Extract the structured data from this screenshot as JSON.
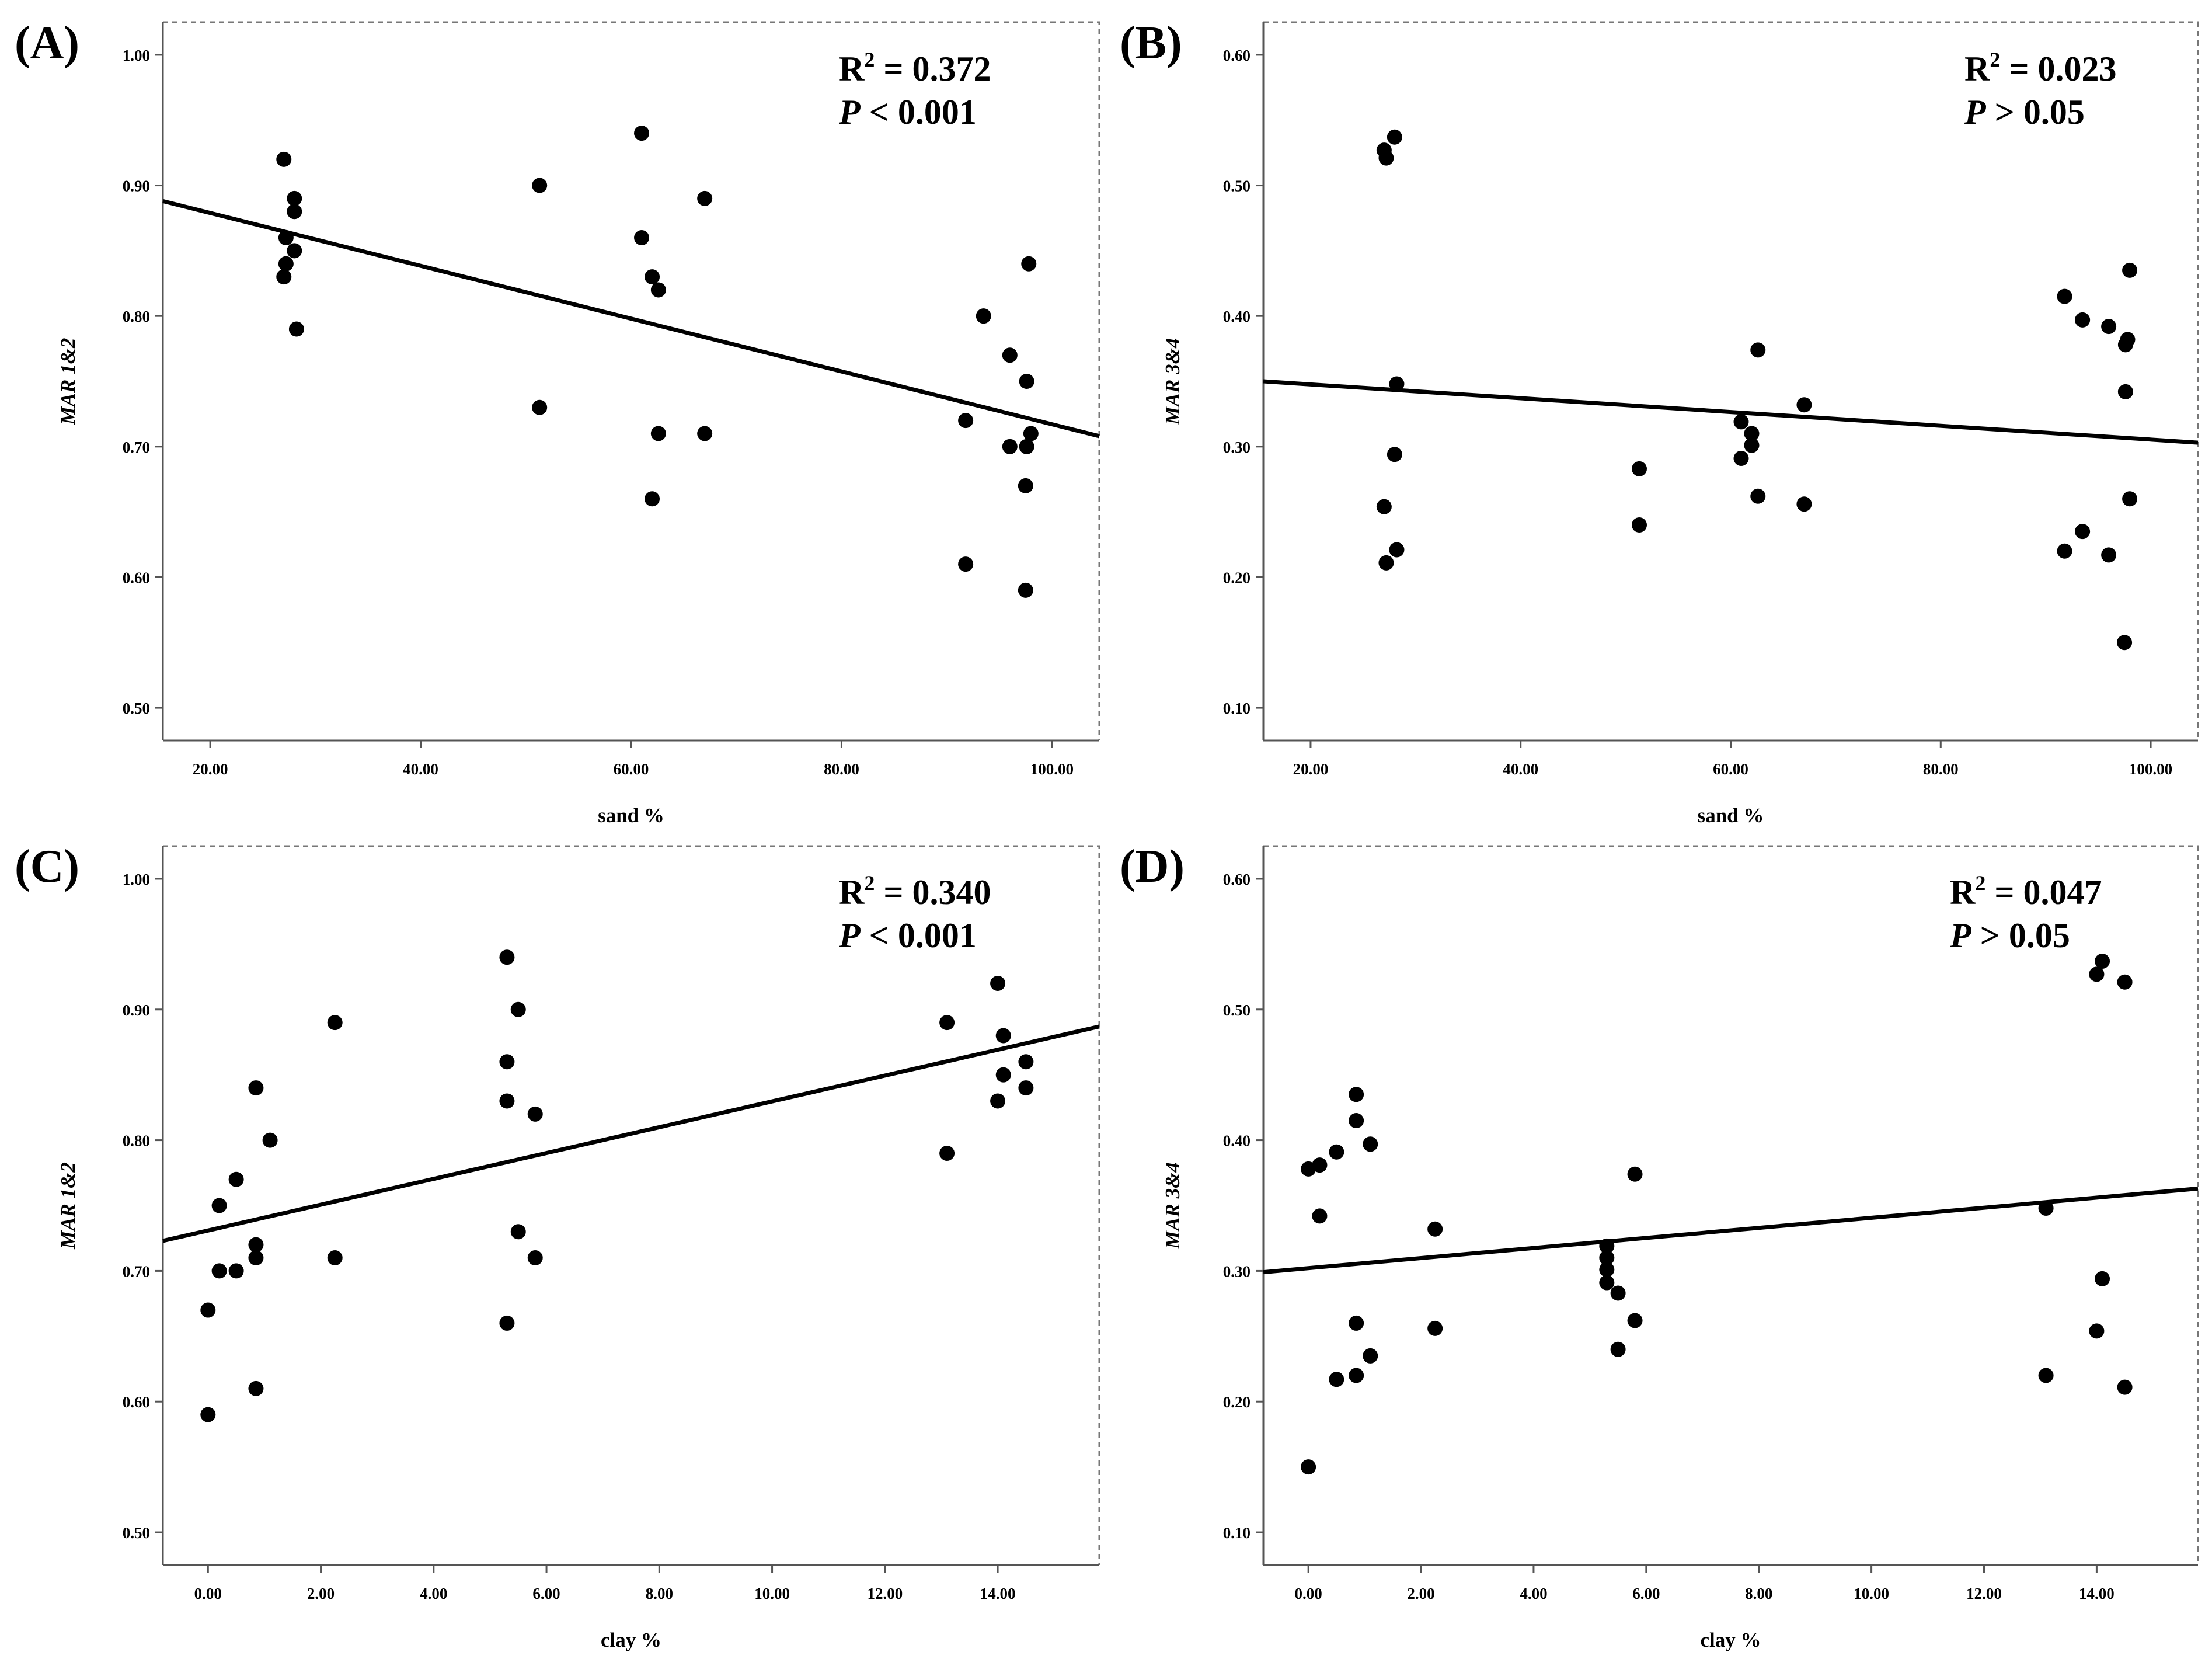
{
  "chart_data": [
    {
      "type": "scatter",
      "panel_label": "(A)",
      "xlabel": "sand %",
      "ylabel": "MAR 1&2",
      "xlim": [
        15.5,
        104.5
      ],
      "ylim": [
        0.475,
        1.025
      ],
      "xticks": [
        20,
        40,
        60,
        80,
        100
      ],
      "yticks": [
        0.5,
        0.6,
        0.7,
        0.8,
        0.9,
        1.0
      ],
      "xtick_labels": [
        "20.00",
        "40.00",
        "60.00",
        "80.00",
        "100.00"
      ],
      "ytick_labels": [
        "0.50",
        "0.60",
        "0.70",
        "0.80",
        "0.90",
        "1.00"
      ],
      "annotation": {
        "r2_text": "R",
        "r2_sup": "2",
        "r2_value": " = 0.372",
        "p_text": "P",
        "p_value": " < 0.001"
      },
      "fit_line": {
        "x": [
          15.5,
          104.5
        ],
        "y": [
          0.888,
          0.708
        ]
      },
      "points": [
        {
          "x": 27.0,
          "y": 0.92
        },
        {
          "x": 28.0,
          "y": 0.89
        },
        {
          "x": 28.0,
          "y": 0.88
        },
        {
          "x": 27.2,
          "y": 0.86
        },
        {
          "x": 28.0,
          "y": 0.85
        },
        {
          "x": 27.2,
          "y": 0.84
        },
        {
          "x": 27.0,
          "y": 0.83
        },
        {
          "x": 28.2,
          "y": 0.79
        },
        {
          "x": 51.3,
          "y": 0.9
        },
        {
          "x": 51.3,
          "y": 0.73
        },
        {
          "x": 61.0,
          "y": 0.94
        },
        {
          "x": 61.0,
          "y": 0.86
        },
        {
          "x": 62.0,
          "y": 0.83
        },
        {
          "x": 62.6,
          "y": 0.82
        },
        {
          "x": 62.6,
          "y": 0.71
        },
        {
          "x": 62.0,
          "y": 0.66
        },
        {
          "x": 67.0,
          "y": 0.89
        },
        {
          "x": 67.0,
          "y": 0.71
        },
        {
          "x": 93.5,
          "y": 0.8
        },
        {
          "x": 91.8,
          "y": 0.72
        },
        {
          "x": 91.8,
          "y": 0.61
        },
        {
          "x": 96.0,
          "y": 0.77
        },
        {
          "x": 96.0,
          "y": 0.7
        },
        {
          "x": 97.8,
          "y": 0.84
        },
        {
          "x": 97.6,
          "y": 0.75
        },
        {
          "x": 98.0,
          "y": 0.71
        },
        {
          "x": 97.6,
          "y": 0.7
        },
        {
          "x": 97.5,
          "y": 0.67
        },
        {
          "x": 97.5,
          "y": 0.59
        }
      ]
    },
    {
      "type": "scatter",
      "panel_label": "(B)",
      "xlabel": "sand %",
      "ylabel": "MAR 3&4",
      "xlim": [
        15.5,
        104.5
      ],
      "ylim": [
        0.075,
        0.625
      ],
      "xticks": [
        20,
        40,
        60,
        80,
        100
      ],
      "yticks": [
        0.1,
        0.2,
        0.3,
        0.4,
        0.5,
        0.6
      ],
      "xtick_labels": [
        "20.00",
        "40.00",
        "60.00",
        "80.00",
        "100.00"
      ],
      "ytick_labels": [
        "0.10",
        "0.20",
        "0.30",
        "0.40",
        "0.50",
        "0.60"
      ],
      "annotation": {
        "r2_text": "R",
        "r2_sup": "2",
        "r2_value": " = 0.023",
        "p_text": "P",
        "p_value": "  > 0.05"
      },
      "fit_line": {
        "x": [
          15.5,
          104.5
        ],
        "y": [
          0.35,
          0.303
        ]
      },
      "points": [
        {
          "x": 27.0,
          "y": 0.527
        },
        {
          "x": 27.2,
          "y": 0.521
        },
        {
          "x": 28.0,
          "y": 0.537
        },
        {
          "x": 28.2,
          "y": 0.348
        },
        {
          "x": 28.0,
          "y": 0.294
        },
        {
          "x": 27.0,
          "y": 0.254
        },
        {
          "x": 28.2,
          "y": 0.221
        },
        {
          "x": 27.2,
          "y": 0.211
        },
        {
          "x": 51.3,
          "y": 0.283
        },
        {
          "x": 51.3,
          "y": 0.24
        },
        {
          "x": 62.6,
          "y": 0.374
        },
        {
          "x": 67.0,
          "y": 0.332
        },
        {
          "x": 61.0,
          "y": 0.319
        },
        {
          "x": 62.0,
          "y": 0.31
        },
        {
          "x": 62.0,
          "y": 0.301
        },
        {
          "x": 61.0,
          "y": 0.291
        },
        {
          "x": 62.6,
          "y": 0.262
        },
        {
          "x": 67.0,
          "y": 0.256
        },
        {
          "x": 91.8,
          "y": 0.415
        },
        {
          "x": 93.5,
          "y": 0.397
        },
        {
          "x": 96.0,
          "y": 0.392
        },
        {
          "x": 98.0,
          "y": 0.435
        },
        {
          "x": 97.8,
          "y": 0.382
        },
        {
          "x": 97.6,
          "y": 0.378
        },
        {
          "x": 97.6,
          "y": 0.342
        },
        {
          "x": 98.0,
          "y": 0.26
        },
        {
          "x": 93.5,
          "y": 0.235
        },
        {
          "x": 91.8,
          "y": 0.22
        },
        {
          "x": 96.0,
          "y": 0.217
        },
        {
          "x": 97.5,
          "y": 0.15
        }
      ]
    },
    {
      "type": "scatter",
      "panel_label": "(C)",
      "xlabel": "clay %",
      "ylabel": "MAR 1&2",
      "xlim": [
        -0.8,
        15.8
      ],
      "ylim": [
        0.475,
        1.025
      ],
      "xticks": [
        0,
        2,
        4,
        6,
        8,
        10,
        12,
        14
      ],
      "yticks": [
        0.5,
        0.6,
        0.7,
        0.8,
        0.9,
        1.0
      ],
      "xtick_labels": [
        "0.00",
        "2.00",
        "4.00",
        "6.00",
        "8.00",
        "10.00",
        "12.00",
        "14.00"
      ],
      "ytick_labels": [
        "0.50",
        "0.60",
        "0.70",
        "0.80",
        "0.90",
        "1.00"
      ],
      "annotation": {
        "r2_text": "R",
        "r2_sup": "2",
        "r2_value": " = 0.340",
        "p_text": "P",
        "p_value": " < 0.001"
      },
      "fit_line": {
        "x": [
          -0.8,
          15.8
        ],
        "y": [
          0.723,
          0.887
        ]
      },
      "points": [
        {
          "x": 0.0,
          "y": 0.67
        },
        {
          "x": 0.0,
          "y": 0.59
        },
        {
          "x": 0.2,
          "y": 0.75
        },
        {
          "x": 0.2,
          "y": 0.7
        },
        {
          "x": 0.5,
          "y": 0.77
        },
        {
          "x": 0.5,
          "y": 0.7
        },
        {
          "x": 0.85,
          "y": 0.84
        },
        {
          "x": 0.85,
          "y": 0.72
        },
        {
          "x": 0.85,
          "y": 0.71
        },
        {
          "x": 0.85,
          "y": 0.61
        },
        {
          "x": 1.1,
          "y": 0.8
        },
        {
          "x": 2.25,
          "y": 0.89
        },
        {
          "x": 2.25,
          "y": 0.71
        },
        {
          "x": 5.3,
          "y": 0.94
        },
        {
          "x": 5.3,
          "y": 0.86
        },
        {
          "x": 5.3,
          "y": 0.83
        },
        {
          "x": 5.3,
          "y": 0.66
        },
        {
          "x": 5.5,
          "y": 0.9
        },
        {
          "x": 5.5,
          "y": 0.73
        },
        {
          "x": 5.8,
          "y": 0.82
        },
        {
          "x": 5.8,
          "y": 0.71
        },
        {
          "x": 13.1,
          "y": 0.89
        },
        {
          "x": 13.1,
          "y": 0.79
        },
        {
          "x": 14.0,
          "y": 0.92
        },
        {
          "x": 14.0,
          "y": 0.83
        },
        {
          "x": 14.1,
          "y": 0.88
        },
        {
          "x": 14.1,
          "y": 0.85
        },
        {
          "x": 14.5,
          "y": 0.86
        },
        {
          "x": 14.5,
          "y": 0.84
        }
      ]
    },
    {
      "type": "scatter",
      "panel_label": "(D)",
      "xlabel": "clay %",
      "ylabel": "MAR 3&4",
      "xlim": [
        -0.8,
        15.8
      ],
      "ylim": [
        0.075,
        0.625
      ],
      "xticks": [
        0,
        2,
        4,
        6,
        8,
        10,
        12,
        14
      ],
      "yticks": [
        0.1,
        0.2,
        0.3,
        0.4,
        0.5,
        0.6
      ],
      "xtick_labels": [
        "0.00",
        "2.00",
        "4.00",
        "6.00",
        "8.00",
        "10.00",
        "12.00",
        "14.00"
      ],
      "ytick_labels": [
        "0.10",
        "0.20",
        "0.30",
        "0.40",
        "0.50",
        "0.60"
      ],
      "annotation": {
        "r2_text": "R",
        "r2_sup": "2",
        "r2_value": " = 0.047",
        "p_text": "P",
        "p_value": " > 0.05"
      },
      "fit_line": {
        "x": [
          -0.8,
          15.8
        ],
        "y": [
          0.299,
          0.363
        ]
      },
      "points": [
        {
          "x": 0.0,
          "y": 0.378
        },
        {
          "x": 0.2,
          "y": 0.381
        },
        {
          "x": 0.2,
          "y": 0.342
        },
        {
          "x": 0.0,
          "y": 0.15
        },
        {
          "x": 0.5,
          "y": 0.391
        },
        {
          "x": 0.5,
          "y": 0.217
        },
        {
          "x": 0.85,
          "y": 0.435
        },
        {
          "x": 0.85,
          "y": 0.415
        },
        {
          "x": 0.85,
          "y": 0.26
        },
        {
          "x": 0.85,
          "y": 0.22
        },
        {
          "x": 1.1,
          "y": 0.397
        },
        {
          "x": 1.1,
          "y": 0.235
        },
        {
          "x": 2.25,
          "y": 0.332
        },
        {
          "x": 2.25,
          "y": 0.256
        },
        {
          "x": 5.3,
          "y": 0.319
        },
        {
          "x": 5.3,
          "y": 0.31
        },
        {
          "x": 5.3,
          "y": 0.301
        },
        {
          "x": 5.3,
          "y": 0.291
        },
        {
          "x": 5.5,
          "y": 0.283
        },
        {
          "x": 5.5,
          "y": 0.24
        },
        {
          "x": 5.8,
          "y": 0.374
        },
        {
          "x": 5.8,
          "y": 0.262
        },
        {
          "x": 13.1,
          "y": 0.348
        },
        {
          "x": 13.1,
          "y": 0.22
        },
        {
          "x": 14.0,
          "y": 0.527
        },
        {
          "x": 14.0,
          "y": 0.254
        },
        {
          "x": 14.1,
          "y": 0.537
        },
        {
          "x": 14.1,
          "y": 0.294
        },
        {
          "x": 14.5,
          "y": 0.521
        },
        {
          "x": 14.5,
          "y": 0.211
        }
      ]
    }
  ]
}
